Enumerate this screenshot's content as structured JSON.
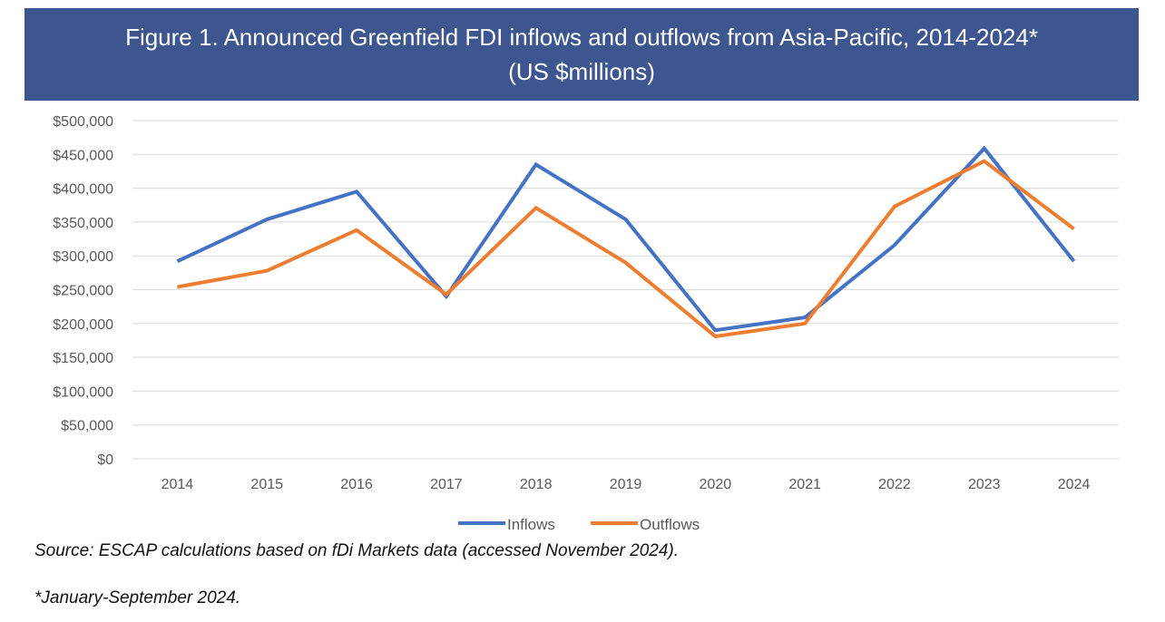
{
  "header": {
    "title_line1": "Figure 1. Announced Greenfield FDI inflows and outflows from Asia-Pacific, 2014-2024*",
    "title_line2": "(US $millions)"
  },
  "colors": {
    "banner": "#3d5690",
    "inflows": "#4472c4",
    "outflows": "#ed7d31",
    "grid": "#d9d9d9"
  },
  "chart_data": {
    "type": "line",
    "title": "Figure 1. Announced Greenfield FDI inflows and outflows from Asia-Pacific, 2014-2024* (US $millions)",
    "xlabel": "",
    "ylabel": "",
    "categories": [
      "2014",
      "2015",
      "2016",
      "2017",
      "2018",
      "2019",
      "2020",
      "2021",
      "2022",
      "2023",
      "2024"
    ],
    "ylim": [
      0,
      500000
    ],
    "ytick_values": [
      0,
      50000,
      100000,
      150000,
      200000,
      250000,
      300000,
      350000,
      400000,
      450000,
      500000
    ],
    "ytick_labels": [
      "$0",
      "$50,000",
      "$100,000",
      "$150,000",
      "$200,000",
      "$250,000",
      "$300,000",
      "$350,000",
      "$400,000",
      "$450,000",
      "$500,000"
    ],
    "grid": true,
    "legend_position": "bottom-center",
    "series": [
      {
        "name": "Inflows",
        "color": "#4472c4",
        "values": [
          292000,
          354000,
          395000,
          240000,
          435000,
          354000,
          190000,
          209000,
          316000,
          459000,
          292000
        ]
      },
      {
        "name": "Outflows",
        "color": "#ed7d31",
        "values": [
          254000,
          278000,
          338000,
          243000,
          371000,
          290000,
          181000,
          200000,
          373000,
          440000,
          340000
        ]
      }
    ]
  },
  "notes": {
    "source": "Source: ESCAP calculations based on fDi Markets data (accessed November 2024).",
    "footnote": "*January-September 2024."
  }
}
